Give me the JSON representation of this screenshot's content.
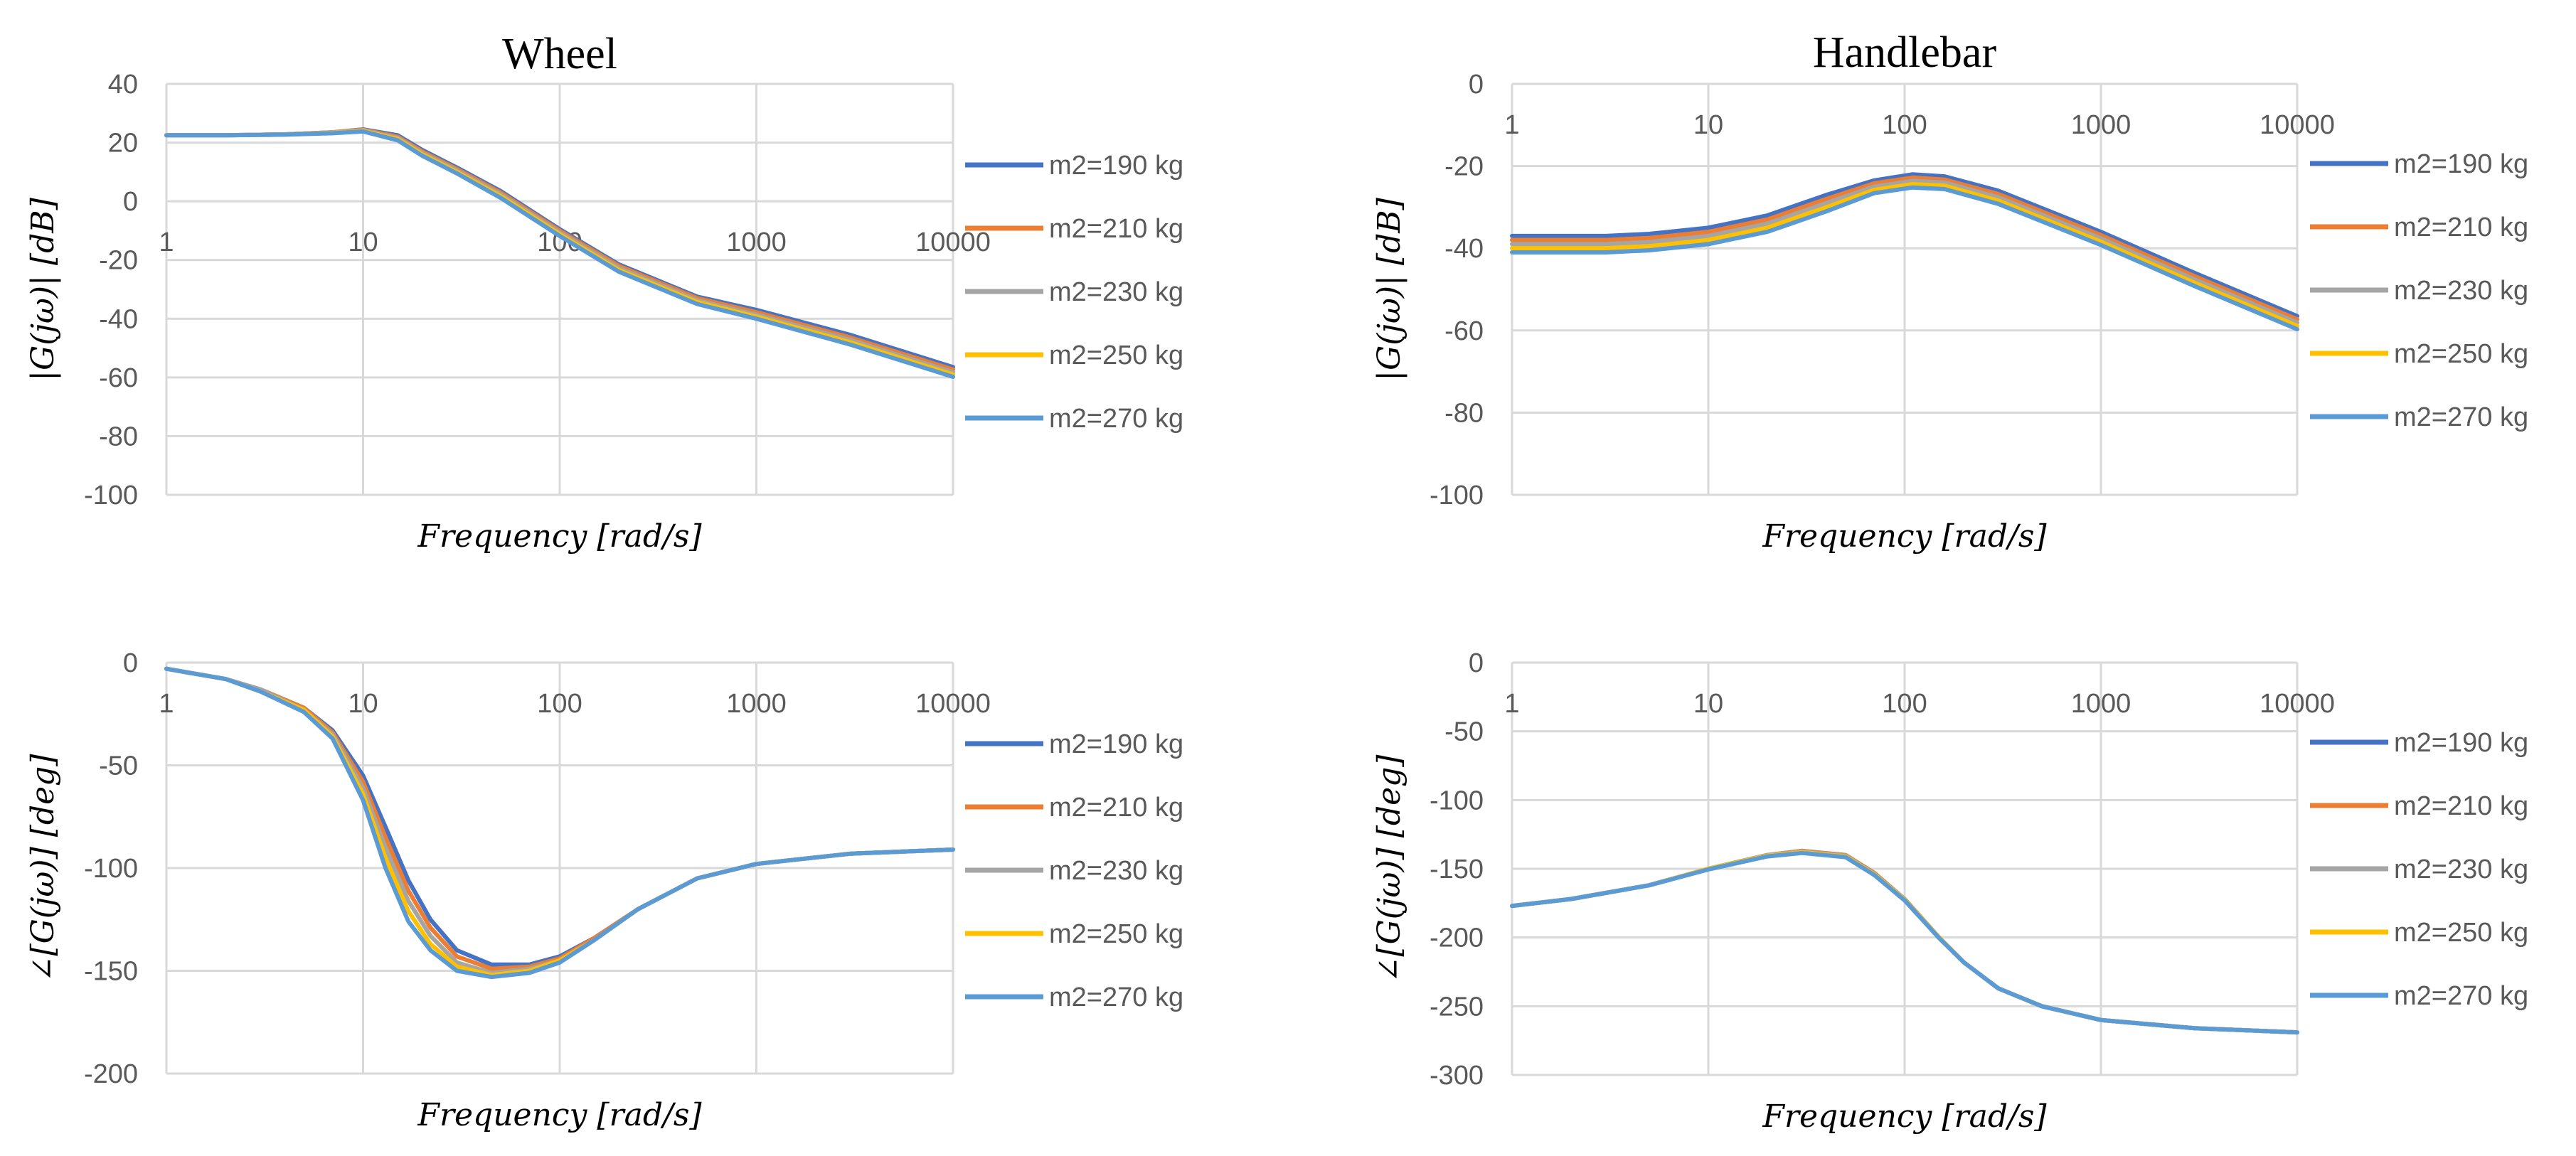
{
  "chart_data": [
    {
      "id": "wheel-magnitude",
      "type": "line",
      "title": "Wheel",
      "xlabel": "Frequency [rad/s]",
      "ylabel": "|G(jω)| [dB]",
      "xscale": "log",
      "xlim": [
        1,
        10000
      ],
      "ylim": [
        -100,
        40
      ],
      "xticks": [
        "1",
        "10",
        "100",
        "1000",
        "10000"
      ],
      "yticks": [
        40,
        20,
        0,
        -20,
        -40,
        -60,
        -80,
        -100
      ],
      "grid": true,
      "legend": "right",
      "x": [
        1,
        2,
        4,
        7,
        10,
        15,
        20,
        30,
        50,
        100,
        200,
        500,
        1000,
        3000,
        10000
      ],
      "series": [
        {
          "name": "m2=190 kg",
          "color": "#4472C4",
          "values": [
            22.5,
            22.5,
            22.8,
            23.5,
            24.5,
            22.5,
            17.5,
            11.5,
            3.5,
            -9.5,
            -21.5,
            -32.5,
            -37,
            -45.5,
            -56.5
          ]
        },
        {
          "name": "m2=210 kg",
          "color": "#ED7D31",
          "values": [
            22.5,
            22.5,
            22.8,
            23.5,
            24.4,
            22,
            17,
            11,
            3,
            -10,
            -22,
            -33,
            -37.8,
            -46.4,
            -57.3
          ]
        },
        {
          "name": "m2=230 kg",
          "color": "#A5A5A5",
          "values": [
            22.5,
            22.5,
            22.8,
            23.4,
            24.2,
            21.6,
            16.5,
            10.5,
            2.4,
            -10.6,
            -22.7,
            -33.7,
            -38.6,
            -47.2,
            -58.2
          ]
        },
        {
          "name": "m2=250 kg",
          "color": "#FFC000",
          "values": [
            22.5,
            22.5,
            22.7,
            23.3,
            24,
            21.2,
            16,
            10,
            1.8,
            -11.2,
            -23.4,
            -34.3,
            -39.3,
            -48,
            -59
          ]
        },
        {
          "name": "m2=270 kg",
          "color": "#5B9BD5",
          "values": [
            22.5,
            22.5,
            22.7,
            23.2,
            23.8,
            20.8,
            15.5,
            9.5,
            1.2,
            -11.8,
            -24,
            -35,
            -40,
            -48.8,
            -59.8
          ]
        }
      ]
    },
    {
      "id": "handlebar-magnitude",
      "type": "line",
      "title": "Handlebar",
      "xlabel": "Frequency [rad/s]",
      "ylabel": "|G(jω)| [dB]",
      "xscale": "log",
      "xlim": [
        1,
        10000
      ],
      "ylim": [
        -100,
        0
      ],
      "xticks": [
        "1",
        "10",
        "100",
        "1000",
        "10000"
      ],
      "yticks": [
        0,
        -20,
        -40,
        -60,
        -80,
        -100
      ],
      "grid": true,
      "legend": "right",
      "x": [
        1,
        3,
        5,
        10,
        20,
        40,
        70,
        110,
        160,
        300,
        1000,
        3000,
        10000
      ],
      "series": [
        {
          "name": "m2=190 kg",
          "color": "#4472C4",
          "values": [
            -37,
            -37,
            -36.5,
            -35,
            -32,
            -27,
            -23.5,
            -22,
            -22.5,
            -26,
            -36,
            -46,
            -56.5
          ]
        },
        {
          "name": "m2=210 kg",
          "color": "#ED7D31",
          "values": [
            -38,
            -38,
            -37.5,
            -36,
            -33,
            -28,
            -24.2,
            -22.8,
            -23.3,
            -26.8,
            -36.8,
            -46.8,
            -57.3
          ]
        },
        {
          "name": "m2=230 kg",
          "color": "#A5A5A5",
          "values": [
            -39,
            -39,
            -38.5,
            -37,
            -34,
            -29,
            -25,
            -23.6,
            -24,
            -27.6,
            -37.6,
            -47.6,
            -58.1
          ]
        },
        {
          "name": "m2=250 kg",
          "color": "#FFC000",
          "values": [
            -40,
            -40,
            -39.5,
            -38,
            -35,
            -30,
            -25.8,
            -24.4,
            -24.8,
            -28.4,
            -38.4,
            -48.4,
            -58.9
          ]
        },
        {
          "name": "m2=270 kg",
          "color": "#5B9BD5",
          "values": [
            -41,
            -41,
            -40.5,
            -39,
            -36,
            -31,
            -26.6,
            -25.2,
            -25.6,
            -29.2,
            -39.2,
            -49.2,
            -59.7
          ]
        }
      ]
    },
    {
      "id": "wheel-phase",
      "type": "line",
      "title": "",
      "xlabel": "Frequency [rad/s]",
      "ylabel": "∠[G(jω)] [deg]",
      "xscale": "log",
      "xlim": [
        1,
        10000
      ],
      "ylim": [
        -200,
        0
      ],
      "xticks": [
        "1",
        "10",
        "100",
        "1000",
        "10000"
      ],
      "yticks": [
        0,
        -50,
        -100,
        -150,
        -200
      ],
      "grid": true,
      "legend": "right",
      "x": [
        1,
        2,
        3,
        5,
        7,
        10,
        13,
        17,
        22,
        30,
        45,
        70,
        100,
        150,
        250,
        500,
        1000,
        3000,
        10000
      ],
      "series": [
        {
          "name": "m2=190 kg",
          "color": "#4472C4",
          "values": [
            -3,
            -8,
            -13,
            -22,
            -33,
            -55,
            -80,
            -106,
            -125,
            -140,
            -147,
            -147,
            -143,
            -134,
            -120,
            -105,
            -98,
            -93,
            -91
          ]
        },
        {
          "name": "m2=210 kg",
          "color": "#ED7D31",
          "values": [
            -3,
            -8,
            -13,
            -22,
            -34,
            -58,
            -85,
            -111,
            -129,
            -143,
            -149,
            -148,
            -144,
            -134,
            -120,
            -105,
            -98,
            -93,
            -91
          ]
        },
        {
          "name": "m2=230 kg",
          "color": "#A5A5A5",
          "values": [
            -3,
            -8,
            -13,
            -23,
            -35,
            -61,
            -90,
            -116,
            -133,
            -146,
            -151,
            -149,
            -145,
            -135,
            -120,
            -105,
            -98,
            -93,
            -91
          ]
        },
        {
          "name": "m2=250 kg",
          "color": "#FFC000",
          "values": [
            -3,
            -8,
            -14,
            -23,
            -36,
            -64,
            -95,
            -121,
            -137,
            -148,
            -152,
            -150,
            -145,
            -135,
            -120,
            -105,
            -98,
            -93,
            -91
          ]
        },
        {
          "name": "m2=270 kg",
          "color": "#5B9BD5",
          "values": [
            -3,
            -8,
            -14,
            -24,
            -37,
            -67,
            -100,
            -126,
            -140,
            -150,
            -153,
            -151,
            -146,
            -135,
            -120,
            -105,
            -98,
            -93,
            -91
          ]
        }
      ]
    },
    {
      "id": "handlebar-phase",
      "type": "line",
      "title": "",
      "xlabel": "Frequency [rad/s]",
      "ylabel": "∠[G(jω)] [deg]",
      "xscale": "log",
      "xlim": [
        1,
        10000
      ],
      "ylim": [
        -300,
        0
      ],
      "xticks": [
        "1",
        "10",
        "100",
        "1000",
        "10000"
      ],
      "yticks": [
        0,
        -50,
        -100,
        -150,
        -200,
        -250,
        -300
      ],
      "grid": true,
      "legend": "right",
      "x": [
        1,
        2,
        5,
        10,
        20,
        30,
        50,
        70,
        100,
        150,
        200,
        300,
        500,
        1000,
        3000,
        10000
      ],
      "series": [
        {
          "name": "m2=190 kg",
          "color": "#4472C4",
          "values": [
            -177,
            -172,
            -162,
            -150,
            -140,
            -137,
            -140,
            -153,
            -172,
            -200,
            -218,
            -237,
            -250,
            -260,
            -266,
            -269
          ]
        },
        {
          "name": "m2=210 kg",
          "color": "#ED7D31",
          "values": [
            -177,
            -172,
            -162,
            -150,
            -140,
            -137,
            -140,
            -153,
            -172,
            -200,
            -218,
            -237,
            -250,
            -260,
            -266,
            -269
          ]
        },
        {
          "name": "m2=230 kg",
          "color": "#A5A5A5",
          "values": [
            -177,
            -172,
            -162,
            -150,
            -140,
            -137.5,
            -140.5,
            -153.5,
            -172,
            -200,
            -218,
            -237,
            -250,
            -260,
            -266,
            -269
          ]
        },
        {
          "name": "m2=250 kg",
          "color": "#FFC000",
          "values": [
            -177,
            -172,
            -162,
            -150,
            -140.5,
            -138,
            -141,
            -154,
            -172.5,
            -200,
            -218,
            -237,
            -250,
            -260,
            -266,
            -269
          ]
        },
        {
          "name": "m2=270 kg",
          "color": "#5B9BD5",
          "values": [
            -177,
            -172,
            -162,
            -150.5,
            -141,
            -138.5,
            -141.5,
            -154.5,
            -173,
            -200.5,
            -218,
            -237,
            -250,
            -260,
            -266,
            -269
          ]
        }
      ]
    }
  ]
}
